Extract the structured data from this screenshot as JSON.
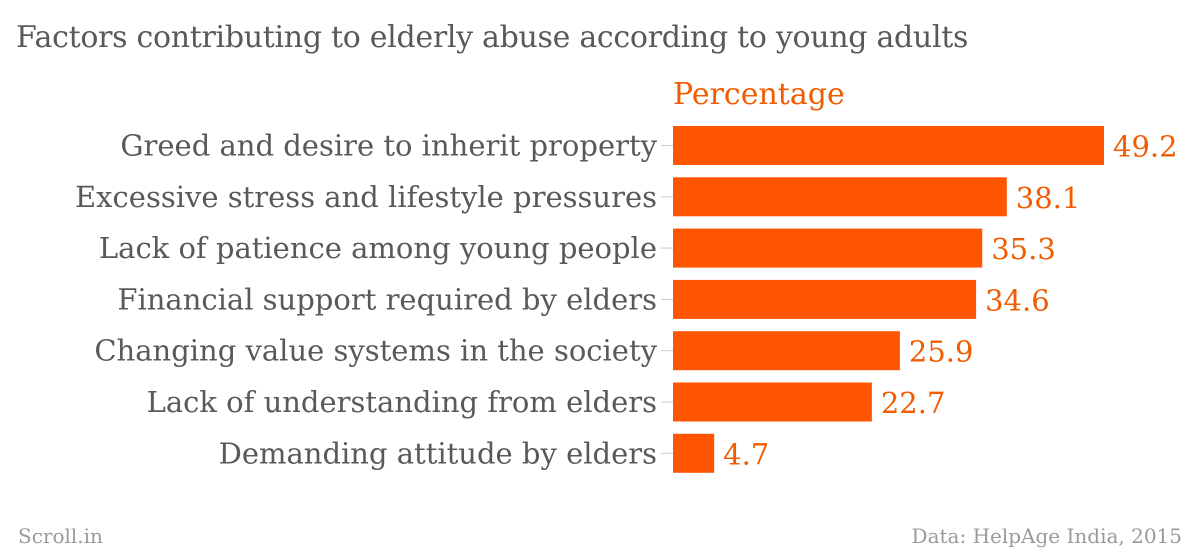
{
  "chart_data": {
    "type": "bar",
    "orientation": "horizontal",
    "title": "Factors contributing to elderly abuse according to young adults",
    "series": [
      {
        "name": "Percentage",
        "values": [
          49.2,
          38.1,
          35.3,
          34.6,
          25.9,
          22.7,
          4.7
        ]
      }
    ],
    "categories": [
      "Greed and desire to inherit property",
      "Excessive stress and lifestyle pressures",
      "Lack of patience among young people",
      "Financial support required by elders",
      "Changing value systems in the society",
      "Lack of understanding from elders",
      "Demanding attitude by elders"
    ],
    "value_labels": [
      "49.2",
      "38.1",
      "35.3",
      "34.6",
      "25.9",
      "22.7",
      "4.7"
    ],
    "xlim": [
      0,
      49.2
    ],
    "grid": false,
    "legend": "none",
    "bar_color": "#ff5500"
  },
  "footer": {
    "left": "Scroll.in",
    "right": "Data: HelpAge India, 2015"
  }
}
